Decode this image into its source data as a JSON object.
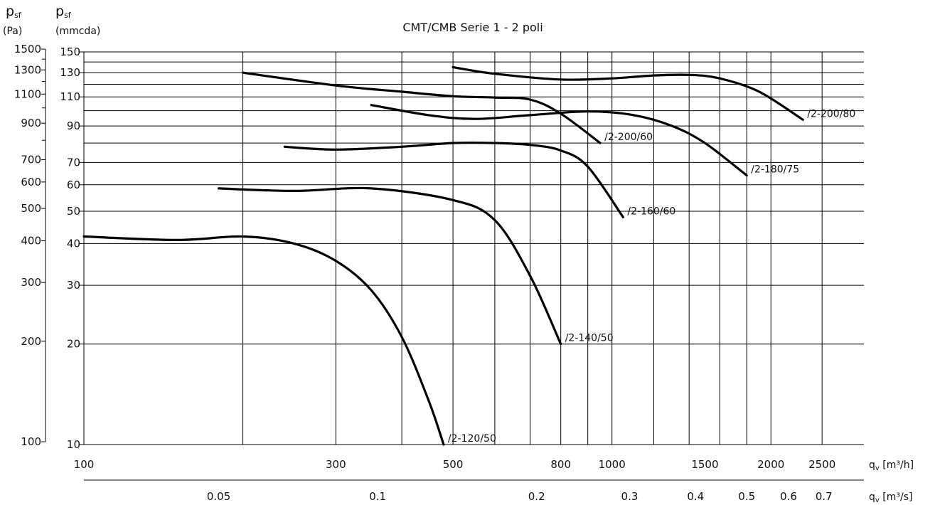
{
  "chart_data": {
    "type": "line",
    "title": "CMT/CMB Serie 1 - 2 poli",
    "y_left_label": "p",
    "y_left_sub": "sf",
    "y_left_unit": "(Pa)",
    "y_right_label": "p",
    "y_right_sub": "sf",
    "y_right_unit": "(mmcda)",
    "x_label_top": "q",
    "x_label_top_sub": "v",
    "x_label_top_unit": " [m³/h]",
    "x_label_bottom": "q",
    "x_label_bottom_sub": "v",
    "x_label_bottom_unit": " [m³/s]",
    "x_scale": "log",
    "y_scale": "log",
    "xlim": [
      100,
      3000
    ],
    "ylim_mmcda": [
      10,
      150
    ],
    "x_ticks_m3h": [
      "100",
      "300",
      "500",
      "800",
      "1000",
      "1500",
      "2000",
      "2500"
    ],
    "x_ticks_m3s": [
      "0.05",
      "0.1",
      "0.2",
      "0.3",
      "0.4",
      "0.5",
      "0.6",
      "0.7"
    ],
    "y_ticks_pa": [
      "1500",
      "1300",
      "1100",
      "900",
      "700",
      "600",
      "500",
      "400",
      "300",
      "200",
      "100"
    ],
    "y_ticks_mmcda": [
      "150",
      "130",
      "110",
      "90",
      "70",
      "60",
      "50",
      "40",
      "30",
      "20",
      "10"
    ],
    "grid": true,
    "series": [
      {
        "name": "/2-120/50",
        "x": [
          100,
          150,
          200,
          250,
          300,
          350,
          400,
          450,
          480
        ],
        "y": [
          42,
          41,
          42,
          40,
          35.5,
          29,
          21,
          13.5,
          10
        ]
      },
      {
        "name": "/2-140/50",
        "x": [
          180,
          250,
          350,
          500,
          600,
          700,
          800
        ],
        "y": [
          58.5,
          57.5,
          58.5,
          54,
          47,
          32,
          20
        ]
      },
      {
        "name": "/2-160/60",
        "x": [
          240,
          300,
          400,
          500,
          600,
          700,
          800,
          900,
          1050
        ],
        "y": [
          78,
          76.5,
          78,
          80,
          80,
          79,
          76,
          68,
          48
        ]
      },
      {
        "name": "/2-200/60",
        "x": [
          200,
          300,
          400,
          500,
          600,
          700,
          800,
          950
        ],
        "y": [
          130,
          119,
          114,
          110.5,
          109.5,
          108,
          98,
          80
        ]
      },
      {
        "name": "/2-180/75",
        "x": [
          350,
          450,
          550,
          700,
          900,
          1100,
          1300,
          1500,
          1800
        ],
        "y": [
          104,
          97,
          94.5,
          97,
          99.5,
          97,
          90,
          80,
          64
        ]
      },
      {
        "name": "/2-200/80",
        "x": [
          500,
          600,
          800,
          1000,
          1200,
          1400,
          1600,
          1900,
          2300
        ],
        "y": [
          135,
          129,
          124,
          125,
          127.5,
          128,
          125,
          114,
          94
        ]
      }
    ]
  }
}
